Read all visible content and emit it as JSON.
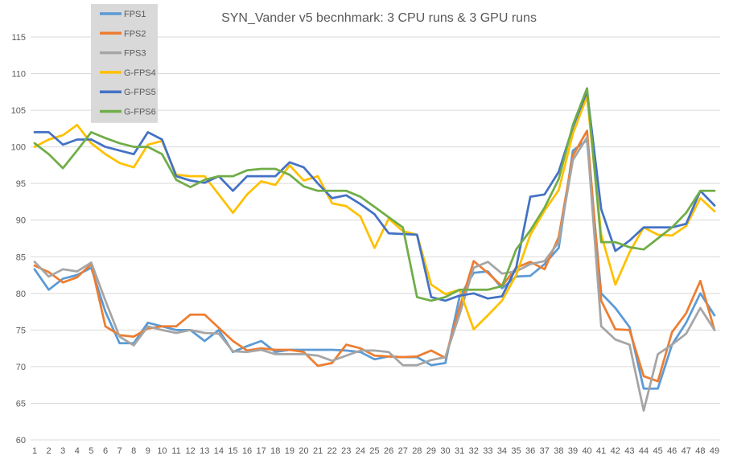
{
  "title": "SYN_Vander v5 becnhmark: 3 CPU runs & 3 GPU runs",
  "colors": {
    "text": "#595959",
    "gridline": "#D9D9D9",
    "legend_background": "#D9D9D9",
    "background": "#FFFFFF"
  },
  "legend": {
    "position": "top-left",
    "items": [
      {
        "label": "FPS1",
        "color": "#5B9BD5"
      },
      {
        "label": "FPS2",
        "color": "#ED7D31"
      },
      {
        "label": "FPS3",
        "color": "#A5A5A5"
      },
      {
        "label": "G-FPS4",
        "color": "#FFC000"
      },
      {
        "label": "G-FPS5",
        "color": "#4472C4"
      },
      {
        "label": "G-FPS6",
        "color": "#70AD47"
      }
    ]
  },
  "chart_data": {
    "type": "line",
    "title": "SYN_Vander v5 becnhmark: 3 CPU runs & 3 GPU runs",
    "xlabel": "",
    "ylabel": "",
    "ylim": [
      60,
      115
    ],
    "ytick_step": 5,
    "grid": true,
    "legend_position": "top-left",
    "x": [
      1,
      2,
      3,
      4,
      5,
      6,
      7,
      8,
      9,
      10,
      11,
      12,
      13,
      14,
      15,
      16,
      17,
      18,
      19,
      20,
      21,
      22,
      23,
      24,
      25,
      26,
      27,
      28,
      29,
      30,
      31,
      32,
      33,
      34,
      35,
      36,
      37,
      38,
      39,
      40,
      41,
      42,
      43,
      44,
      45,
      46,
      47,
      48,
      49
    ],
    "series": [
      {
        "name": "FPS1",
        "color": "#5B9BD5",
        "values": [
          83.3,
          80.5,
          82,
          82.5,
          83.5,
          77.5,
          73.2,
          73.2,
          76,
          75.5,
          75,
          75,
          73.5,
          75,
          72,
          72.8,
          73.5,
          72,
          72.3,
          72.3,
          72.3,
          72.3,
          72.2,
          72,
          71,
          71.4,
          71.3,
          71.3,
          70.2,
          70.5,
          79.5,
          82.8,
          83,
          80.7,
          82.3,
          82.4,
          84,
          86.2,
          99.5,
          100.9,
          80,
          78,
          75.4,
          67,
          67,
          73,
          76,
          80,
          77
        ]
      },
      {
        "name": "FPS2",
        "color": "#ED7D31",
        "values": [
          83.8,
          82.9,
          81.5,
          82.2,
          84,
          75.5,
          74.3,
          74.1,
          75.2,
          75.5,
          75.5,
          77.1,
          77.1,
          75.3,
          73.5,
          72.2,
          72.5,
          72.3,
          72.3,
          72,
          70.1,
          70.5,
          73,
          72.5,
          71.5,
          71.4,
          71.3,
          71.4,
          72.2,
          71.2,
          78,
          84.4,
          82.8,
          81,
          83.5,
          84.3,
          83.3,
          87.7,
          98.8,
          102.2,
          79,
          75.1,
          75,
          68.7,
          68,
          74.7,
          77.3,
          81.7,
          75
        ]
      },
      {
        "name": "FPS3",
        "color": "#A5A5A5",
        "values": [
          84.3,
          82.3,
          83.3,
          83,
          84.2,
          79,
          74.1,
          72.9,
          75.5,
          75,
          74.6,
          75,
          74.6,
          74.5,
          72.1,
          72,
          72.3,
          71.7,
          71.7,
          71.7,
          71.5,
          70.8,
          71.5,
          72.2,
          72.2,
          72,
          70.2,
          70.2,
          70.9,
          71.3,
          77.1,
          83.5,
          84.3,
          82.7,
          83,
          84,
          84.4,
          87,
          98.2,
          101.3,
          75.5,
          73.7,
          73,
          64,
          71.7,
          73,
          74.5,
          78,
          75
        ]
      },
      {
        "name": "G-FPS4",
        "color": "#FFC000",
        "values": [
          100,
          101,
          101.6,
          103,
          100.5,
          99,
          97.8,
          97.2,
          100.3,
          100.8,
          96.2,
          96,
          96,
          93.5,
          91,
          93.5,
          95.3,
          94.8,
          97.5,
          95.4,
          96,
          92.3,
          91.9,
          90.5,
          86.2,
          90.2,
          88.5,
          88,
          81.2,
          79.9,
          80.5,
          75.1,
          77,
          79,
          82.5,
          88,
          91.3,
          94.1,
          101.8,
          106.9,
          88,
          81.2,
          85.6,
          89,
          88,
          87.9,
          89.2,
          93,
          91.2
        ]
      },
      {
        "name": "G-FPS5",
        "color": "#4472C4",
        "values": [
          102,
          102,
          100.3,
          101,
          101,
          100,
          99.5,
          99,
          102,
          101,
          96,
          95.4,
          95.1,
          96,
          94,
          96,
          96,
          96,
          97.9,
          97.2,
          95,
          93,
          93.4,
          92.2,
          90.8,
          88.2,
          88.1,
          88,
          79.5,
          79,
          79.7,
          80,
          79.3,
          79.6,
          83.5,
          93.2,
          93.5,
          96.6,
          102.7,
          107.6,
          91.5,
          85.8,
          87.2,
          89,
          89,
          89,
          89.5,
          94,
          92
        ]
      },
      {
        "name": "G-FPS6",
        "color": "#70AD47",
        "values": [
          100.5,
          99,
          97.1,
          99.5,
          102,
          101.2,
          100.5,
          100,
          100,
          99,
          95.5,
          94.5,
          95.5,
          96,
          96,
          96.8,
          97,
          97,
          96.2,
          94.6,
          94,
          94,
          94,
          93.2,
          91.8,
          90.4,
          89,
          79.5,
          79,
          79.5,
          80.5,
          80.5,
          80.5,
          81,
          86,
          88.6,
          91.7,
          95.6,
          103,
          108,
          87,
          87,
          86.3,
          86,
          87.5,
          89,
          91,
          94,
          94
        ]
      }
    ],
    "yticks": [
      60,
      65,
      70,
      75,
      80,
      85,
      90,
      95,
      100,
      105,
      110,
      115
    ]
  }
}
